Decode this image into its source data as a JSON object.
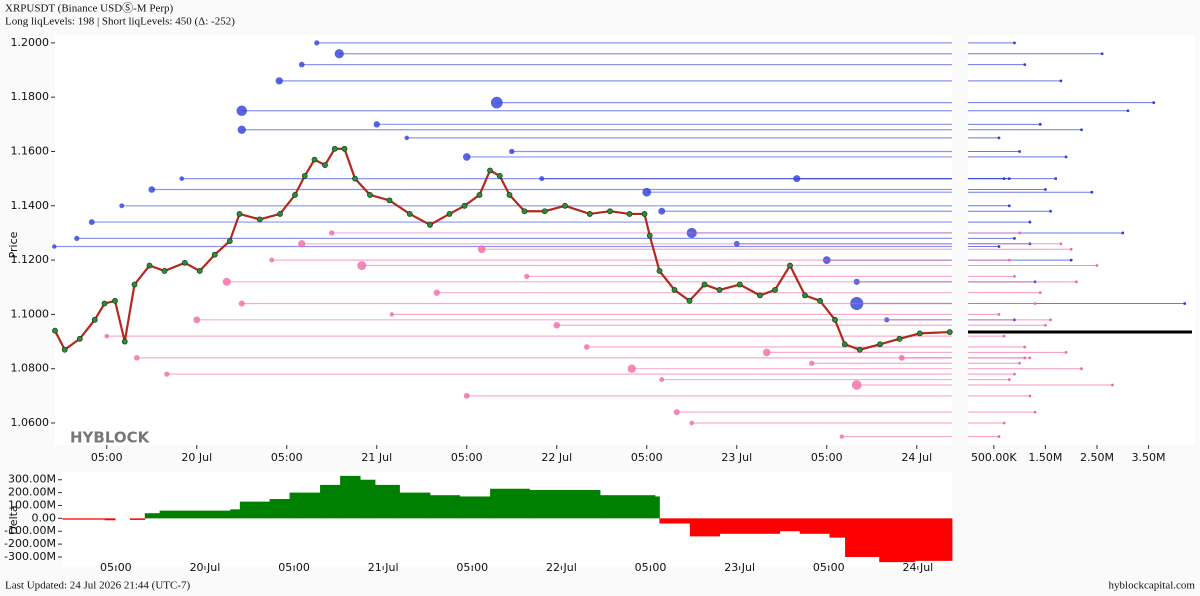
{
  "chart_data": [
    {
      "type": "line",
      "title": "XRPUSDT (Binance USDⓈ-M Perp)",
      "subtitle": "Long liqLevels: 198 | Short liqLevels: 450 (Δ: -252)",
      "y_label": "Price",
      "watermark": "HYBLOCK",
      "color": "#b22a1e",
      "marker_color": "#2e8b3a",
      "xlim": [
        5.1,
        124.7
      ],
      "ylim": [
        1.0519,
        1.2029
      ],
      "xticks": [
        {
          "value": 12,
          "label": "05:00"
        },
        {
          "value": 24,
          "label": "20 Jul"
        },
        {
          "value": 36,
          "label": "05:00"
        },
        {
          "value": 48,
          "label": "21 Jul"
        },
        {
          "value": 60,
          "label": "05:00"
        },
        {
          "value": 72,
          "label": "22 Jul"
        },
        {
          "value": 84,
          "label": "05:00"
        },
        {
          "value": 96,
          "label": "23 Jul"
        },
        {
          "value": 108,
          "label": "05:00"
        },
        {
          "value": 120,
          "label": "24 Jul"
        }
      ],
      "yticks": [
        {
          "value": 1.06,
          "label": "1.0600"
        },
        {
          "value": 1.08,
          "label": "1.0800"
        },
        {
          "value": 1.1,
          "label": "1.1000"
        },
        {
          "value": 1.12,
          "label": "1.1200"
        },
        {
          "value": 1.14,
          "label": "1.1400"
        },
        {
          "value": 1.16,
          "label": "1.1600"
        },
        {
          "value": 1.18,
          "label": "1.1800"
        },
        {
          "value": 1.2,
          "label": "1.2000"
        }
      ],
      "x": [
        5.1,
        6.4,
        8.4,
        10.4,
        11.7,
        13.1,
        14.4,
        15.7,
        17.7,
        19.7,
        22.4,
        24.4,
        26.4,
        28.4,
        29.7,
        32.4,
        35.1,
        37.1,
        38.4,
        39.7,
        41.1,
        42.4,
        43.7,
        45.1,
        47.1,
        49.7,
        52.4,
        55.1,
        57.7,
        59.7,
        61.7,
        63.1,
        64.4,
        65.7,
        67.7,
        70.4,
        73.1,
        76.4,
        79.1,
        81.7,
        83.7,
        84.4,
        85.7,
        87.7,
        89.7,
        91.7,
        93.7,
        96.4,
        99.1,
        101.1,
        103.1,
        105.1,
        107.1,
        109.1,
        110.4,
        112.4,
        115.1,
        117.7,
        120.4,
        124.4
      ],
      "values": [
        1.094,
        1.087,
        1.091,
        1.098,
        1.104,
        1.105,
        1.09,
        1.111,
        1.118,
        1.116,
        1.119,
        1.116,
        1.122,
        1.127,
        1.137,
        1.135,
        1.137,
        1.144,
        1.151,
        1.157,
        1.155,
        1.161,
        1.161,
        1.15,
        1.144,
        1.142,
        1.137,
        1.133,
        1.137,
        1.14,
        1.144,
        1.153,
        1.151,
        1.144,
        1.138,
        1.138,
        1.14,
        1.137,
        1.138,
        1.137,
        1.137,
        1.129,
        1.116,
        1.109,
        1.105,
        1.111,
        1.109,
        1.111,
        1.107,
        1.109,
        1.118,
        1.107,
        1.105,
        1.098,
        1.089,
        1.087,
        1.089,
        1.091,
        1.093,
        1.0935
      ],
      "short_levels": {
        "color": "#2d3fd9",
        "start": [
          5,
          8,
          10,
          14,
          18,
          22,
          30,
          30,
          35,
          38,
          40,
          43,
          48,
          52,
          60,
          64,
          66,
          70,
          84,
          86,
          90,
          96,
          104,
          108,
          112,
          112,
          116
        ],
        "price": [
          1.125,
          1.128,
          1.134,
          1.14,
          1.146,
          1.15,
          1.168,
          1.175,
          1.186,
          1.192,
          1.2,
          1.196,
          1.17,
          1.165,
          1.158,
          1.178,
          1.16,
          1.15,
          1.145,
          1.138,
          1.13,
          1.126,
          1.15,
          1.12,
          1.104,
          1.112,
          1.098
        ],
        "size": [
          600000,
          900000,
          1200000,
          800000,
          1500000,
          700000,
          2200000,
          3100000,
          1800000,
          1100000,
          900000,
          2600000,
          1400000,
          600000,
          1900000,
          3600000,
          1000000,
          800000,
          2400000,
          1600000,
          3000000,
          1200000,
          1700000,
          2000000,
          4200000,
          1300000,
          900000
        ]
      },
      "long_levels": {
        "color": "#f06aa8",
        "start": [
          12,
          16,
          20,
          24,
          28,
          30,
          34,
          38,
          42,
          46,
          50,
          56,
          60,
          62,
          68,
          72,
          76,
          82,
          86,
          88,
          90,
          100,
          106,
          110,
          112,
          118
        ],
        "price": [
          1.092,
          1.084,
          1.078,
          1.098,
          1.112,
          1.104,
          1.12,
          1.126,
          1.13,
          1.118,
          1.1,
          1.108,
          1.07,
          1.124,
          1.114,
          1.096,
          1.088,
          1.08,
          1.076,
          1.064,
          1.06,
          1.086,
          1.082,
          1.055,
          1.074,
          1.084
        ],
        "size": [
          700000,
          1100000,
          900000,
          1600000,
          2100000,
          1300000,
          800000,
          1800000,
          1000000,
          2500000,
          600000,
          1400000,
          1200000,
          2000000,
          900000,
          1500000,
          1100000,
          2200000,
          800000,
          1300000,
          700000,
          1900000,
          1000000,
          600000,
          2800000,
          1200000
        ]
      },
      "size_lim": [
        0,
        4400000
      ],
      "size_ticks": [
        {
          "value": 500000,
          "label": "500.00K"
        },
        {
          "value": 1500000,
          "label": "1.50M"
        },
        {
          "value": 2500000,
          "label": "2.50M"
        },
        {
          "value": 3500000,
          "label": "3.50M"
        }
      ]
    },
    {
      "type": "area",
      "y_label": "Delta",
      "positive_color": "#008000",
      "negative_color": "#ff0000",
      "xlim": [
        4.75,
        124.6
      ],
      "ylim": [
        -370,
        360
      ],
      "xticks": [
        {
          "value": 12,
          "label": "05:00"
        },
        {
          "value": 24,
          "label": "20 Jul"
        },
        {
          "value": 36,
          "label": "05:00"
        },
        {
          "value": 48,
          "label": "21 Jul"
        },
        {
          "value": 60,
          "label": "05:00"
        },
        {
          "value": 72,
          "label": "22 Jul"
        },
        {
          "value": 84,
          "label": "05:00"
        },
        {
          "value": 96,
          "label": "23 Jul"
        },
        {
          "value": 108,
          "label": "05:00"
        },
        {
          "value": 120,
          "label": "24 Jul"
        }
      ],
      "yticks": [
        {
          "value": 300,
          "label": "300.00M"
        },
        {
          "value": 200,
          "label": "200.00M"
        },
        {
          "value": 100,
          "label": "100.00M"
        },
        {
          "value": 0,
          "label": "0.00"
        },
        {
          "value": -100,
          "label": "-100.00M"
        },
        {
          "value": -200,
          "label": "-200.00M"
        },
        {
          "value": -300,
          "label": "-300.00M"
        }
      ],
      "x": [
        4.8,
        10.5,
        11.9,
        13.9,
        15.9,
        17.9,
        27.4,
        28.7,
        32.7,
        35.4,
        39.5,
        42.2,
        44.9,
        46.9,
        50.2,
        54.3,
        58.3,
        62.4,
        67.7,
        77.2,
        84.6,
        85.2,
        89.3,
        93.3,
        101.4,
        104.1,
        108.1,
        110.2,
        114.8,
        119.6
      ],
      "values": [
        -10,
        -15,
        0,
        -12,
        40,
        60,
        70,
        130,
        150,
        200,
        260,
        330,
        300,
        260,
        200,
        180,
        170,
        230,
        220,
        180,
        170,
        -40,
        -140,
        -120,
        -100,
        -120,
        -150,
        -300,
        -340,
        -330
      ]
    }
  ],
  "footer": {
    "updated": "Last Updated: 24 Jul 2026 21:44 (UTC-7)",
    "site": "hyblockcapital.com"
  }
}
